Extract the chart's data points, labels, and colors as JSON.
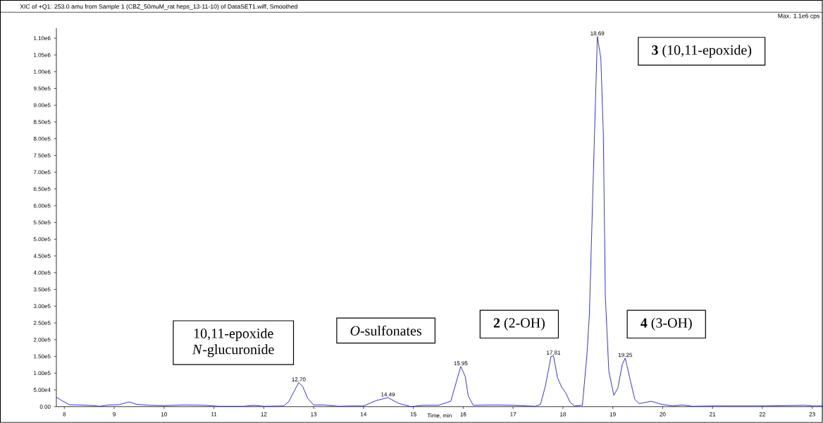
{
  "chart_data": {
    "type": "line",
    "title": "XIC of +Q1: 253.0 amu from Sample 1 (CBZ_50muM_rat heps_13-11-10) of DataSET1.wiff, Smoothed",
    "xlabel": "Time, min",
    "xlim": [
      7.84,
      23.21
    ],
    "ylim": [
      0,
      1130000
    ],
    "xticks": [
      8,
      9,
      10,
      11,
      12,
      13,
      14,
      15,
      16,
      17,
      18,
      19,
      20,
      21,
      22,
      23
    ],
    "yticks": [
      {
        "value": 0,
        "label": "0.00"
      },
      {
        "value": 50000,
        "label": "5.00e4"
      },
      {
        "value": 100000,
        "label": "1.00e5"
      },
      {
        "value": 150000,
        "label": "1.50e5"
      },
      {
        "value": 200000,
        "label": "2.00e5"
      },
      {
        "value": 250000,
        "label": "2.50e5"
      },
      {
        "value": 300000,
        "label": "3.00e5"
      },
      {
        "value": 350000,
        "label": "3.50e5"
      },
      {
        "value": 400000,
        "label": "4.00e5"
      },
      {
        "value": 450000,
        "label": "4.50e5"
      },
      {
        "value": 500000,
        "label": "5.00e5"
      },
      {
        "value": 550000,
        "label": "5.50e5"
      },
      {
        "value": 600000,
        "label": "6.00e5"
      },
      {
        "value": 650000,
        "label": "6.50e5"
      },
      {
        "value": 700000,
        "label": "7.00e5"
      },
      {
        "value": 750000,
        "label": "7.50e5"
      },
      {
        "value": 800000,
        "label": "8.00e5"
      },
      {
        "value": 850000,
        "label": "8.50e5"
      },
      {
        "value": 900000,
        "label": "9.00e5"
      },
      {
        "value": 950000,
        "label": "9.50e5"
      },
      {
        "value": 1000000,
        "label": "1.00e6"
      },
      {
        "value": 1050000,
        "label": "1.05e6"
      },
      {
        "value": 1100000,
        "label": "1.10e6"
      }
    ],
    "grid": false,
    "marker": "none",
    "line_style": "solid",
    "series": [
      {
        "color": "#0000ff",
        "x": [
          7.84,
          7.95,
          8.1,
          8.3,
          8.6,
          8.7,
          8.9,
          9.1,
          9.3,
          9.45,
          9.7,
          10.0,
          10.4,
          10.8,
          11.1,
          11.6,
          11.8,
          12.0,
          12.4,
          12.5,
          12.7,
          12.78,
          12.88,
          13.0,
          13.2,
          13.5,
          13.8,
          14.0,
          14.25,
          14.49,
          14.7,
          14.95,
          15.2,
          15.5,
          15.75,
          15.95,
          16.04,
          16.1,
          16.2,
          16.6,
          17.0,
          17.45,
          17.55,
          17.65,
          17.76,
          17.81,
          17.89,
          17.97,
          18.06,
          18.14,
          18.23,
          18.39,
          18.48,
          18.53,
          18.61,
          18.69,
          18.76,
          18.81,
          18.85,
          18.92,
          19.02,
          19.1,
          19.19,
          19.25,
          19.35,
          19.44,
          19.53,
          19.77,
          19.98,
          20.2,
          20.4,
          20.6,
          21.0,
          22.0,
          22.85,
          23.0,
          23.21
        ],
        "values": [
          28000,
          18000,
          6000,
          5000,
          3000,
          1000,
          5000,
          6000,
          14000,
          7000,
          4000,
          3000,
          5000,
          4000,
          1000,
          1000,
          4000,
          1000,
          2000,
          15000,
          72000,
          60000,
          25000,
          5000,
          5000,
          1000,
          2000,
          2000,
          18000,
          27000,
          10000,
          0,
          4000,
          4000,
          16000,
          120000,
          90000,
          32000,
          4000,
          5000,
          4000,
          1000,
          7000,
          63000,
          150000,
          152000,
          87000,
          59000,
          40000,
          14000,
          2000,
          4000,
          153000,
          274000,
          695000,
          1105000,
          1040000,
          814000,
          330000,
          106000,
          34000,
          55000,
          126000,
          145000,
          79000,
          22000,
          9000,
          16000,
          7000,
          2000,
          5000,
          1000,
          2000,
          2000,
          4000,
          2000,
          2000
        ]
      }
    ],
    "annotations": [
      "Max. 1.1e6 cps",
      "10,11-epoxide *N*-glucuronide",
      "*O*-sulfonates",
      "**2** (2-OH)",
      "**4** (3-OH)",
      "**3** (10,11-epoxide)",
      {
        "text": "12.70",
        "x": 12.7,
        "y": 72000
      },
      {
        "text": "14.49",
        "x": 14.49,
        "y": 27000
      },
      {
        "text": "15.95",
        "x": 15.95,
        "y": 120000
      },
      {
        "text": "17.81",
        "x": 17.81,
        "y": 152000
      },
      {
        "text": "18.69",
        "x": 18.69,
        "y": 1105000
      },
      {
        "text": "19.25",
        "x": 19.25,
        "y": 145000
      }
    ]
  }
}
